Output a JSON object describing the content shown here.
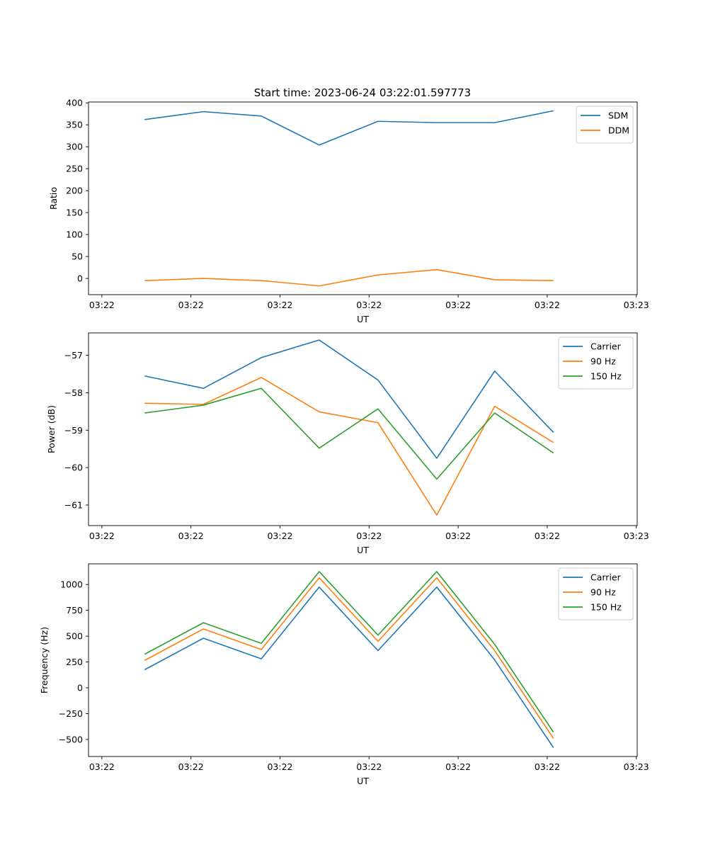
{
  "title": "Start time: 2023-06-24 03:22:01.597773",
  "colors": {
    "blue": "#1f77b4",
    "orange": "#ff7f0e",
    "green": "#2ca02c"
  },
  "x_tick_labels": [
    "03:22",
    "03:22",
    "03:22",
    "03:22",
    "03:22",
    "03:22",
    "03:23"
  ],
  "chart_data": [
    {
      "type": "line",
      "title": "Start time: 2023-06-24 03:22:01.597773",
      "xlabel": "UT",
      "ylabel": "Ratio",
      "x_ticks": [
        0,
        5,
        10,
        15,
        20,
        25,
        30
      ],
      "x_tick_labels": [
        "03:22",
        "03:22",
        "03:22",
        "03:22",
        "03:22",
        "03:22",
        "03:23"
      ],
      "xlim": [
        -0.75,
        30.05
      ],
      "ylim": [
        -37,
        402
      ],
      "y_ticks": [
        0,
        50,
        100,
        150,
        200,
        250,
        300,
        350,
        400
      ],
      "y_tick_labels": [
        "0",
        "50",
        "100",
        "150",
        "200",
        "250",
        "300",
        "350",
        "400"
      ],
      "legend": "top-right",
      "grid": false,
      "x": [
        2.4,
        5.7,
        8.95,
        12.2,
        15.5,
        18.8,
        22.05,
        25.35
      ],
      "series": [
        {
          "name": "SDM",
          "color": "#1f77b4",
          "values": [
            362,
            380,
            370,
            304,
            358,
            355,
            355,
            382
          ]
        },
        {
          "name": "DDM",
          "color": "#ff7f0e",
          "values": [
            -5,
            0,
            -5,
            -17,
            8,
            20,
            -3,
            -5
          ]
        }
      ]
    },
    {
      "type": "line",
      "xlabel": "UT",
      "ylabel": "Power (dB)",
      "x_ticks": [
        0,
        5,
        10,
        15,
        20,
        25,
        30
      ],
      "x_tick_labels": [
        "03:22",
        "03:22",
        "03:22",
        "03:22",
        "03:22",
        "03:22",
        "03:23"
      ],
      "xlim": [
        -0.75,
        30.05
      ],
      "ylim": [
        -61.55,
        -56.4
      ],
      "y_ticks": [
        -57,
        -58,
        -59,
        -60,
        -61
      ],
      "y_tick_labels": [
        "−57",
        "−58",
        "−59",
        "−60",
        "−61"
      ],
      "legend": "top-right",
      "grid": false,
      "x": [
        2.4,
        5.7,
        8.95,
        12.2,
        15.5,
        18.8,
        22.05,
        25.35
      ],
      "series": [
        {
          "name": "Carrier",
          "color": "#1f77b4",
          "values": [
            -57.55,
            -57.88,
            -57.06,
            -56.59,
            -57.66,
            -59.75,
            -57.42,
            -59.06
          ]
        },
        {
          "name": "90 Hz",
          "color": "#ff7f0e",
          "values": [
            -58.28,
            -58.31,
            -57.59,
            -58.51,
            -58.8,
            -61.27,
            -58.36,
            -59.33
          ]
        },
        {
          "name": "150 Hz",
          "color": "#2ca02c",
          "values": [
            -58.54,
            -58.33,
            -57.88,
            -59.48,
            -58.43,
            -60.31,
            -58.54,
            -59.61
          ]
        }
      ]
    },
    {
      "type": "line",
      "xlabel": "UT",
      "ylabel": "Frequency (Hz)",
      "x_ticks": [
        0,
        5,
        10,
        15,
        20,
        25,
        30
      ],
      "x_tick_labels": [
        "03:22",
        "03:22",
        "03:22",
        "03:22",
        "03:22",
        "03:22",
        "03:23"
      ],
      "xlim": [
        -0.75,
        30.05
      ],
      "ylim": [
        -665,
        1200
      ],
      "y_ticks": [
        1000,
        750,
        500,
        250,
        0,
        -250,
        -500
      ],
      "y_tick_labels": [
        "1000",
        "750",
        "500",
        "250",
        "0",
        "−250",
        "−500"
      ],
      "legend": "top-right",
      "grid": false,
      "x": [
        2.4,
        5.7,
        8.95,
        12.2,
        15.5,
        18.8,
        22.05,
        25.35
      ],
      "series": [
        {
          "name": "Carrier",
          "color": "#1f77b4",
          "values": [
            175,
            480,
            280,
            975,
            360,
            975,
            270,
            -580
          ]
        },
        {
          "name": "90 Hz",
          "color": "#ff7f0e",
          "values": [
            265,
            570,
            370,
            1065,
            450,
            1065,
            360,
            -490
          ]
        },
        {
          "name": "150 Hz",
          "color": "#2ca02c",
          "values": [
            325,
            630,
            430,
            1125,
            510,
            1125,
            420,
            -430
          ]
        }
      ]
    }
  ]
}
